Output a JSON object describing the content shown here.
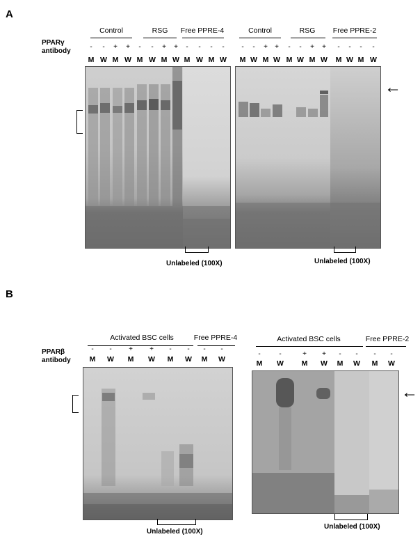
{
  "panelA": {
    "letter": "A",
    "side_label_line1": "PPARγ",
    "side_label_line2": "antibody",
    "left_gel": {
      "groups": [
        "Control",
        "RSG",
        "Free PPRE-4"
      ],
      "signs": [
        "-",
        "-",
        "+",
        "+",
        "-",
        "-",
        "+",
        "+",
        "-",
        "-",
        "-",
        "-"
      ],
      "lanes": [
        "M",
        "W",
        "M",
        "W",
        "M",
        "W",
        "M",
        "W",
        "M",
        "W",
        "M",
        "W"
      ],
      "unlabeled": "Unlabeled  (100X)"
    },
    "right_gel": {
      "groups": [
        "Control",
        "RSG",
        "Free PPRE-2"
      ],
      "signs": [
        "-",
        "-",
        "+",
        "+",
        "-",
        "-",
        "+",
        "+",
        "-",
        "-",
        "-",
        "-"
      ],
      "lanes": [
        "M",
        "W",
        "M",
        "W",
        "M",
        "W",
        "M",
        "W",
        "M",
        "W",
        "M",
        "W"
      ],
      "unlabeled": "Unlabeled  (100X)"
    },
    "arrow_glyph": "←"
  },
  "panelB": {
    "letter": "B",
    "side_label_line1": "PPARβ",
    "side_label_line2": "antibody",
    "left_gel": {
      "groups": [
        "Activated BSC cells",
        "Free PPRE-4"
      ],
      "signs": [
        "-",
        "-",
        "+",
        "+",
        "-",
        "-",
        "-",
        "-"
      ],
      "lanes": [
        "M",
        "W",
        "M",
        "W",
        "M",
        "W",
        "M",
        "W"
      ],
      "unlabeled": "Unlabeled  (100X)"
    },
    "right_gel": {
      "groups": [
        "Activated BSC cells",
        "Free PPRE-2"
      ],
      "signs": [
        "-",
        "-",
        "+",
        "+",
        "-",
        "-",
        "-",
        "-"
      ],
      "lanes": [
        "M",
        "W",
        "M",
        "W",
        "M",
        "W",
        "M",
        "W"
      ],
      "unlabeled": "Unlabeled  (100X)"
    },
    "arrow_glyph": "←"
  },
  "colors": {
    "gel_light": "#d4d4d4",
    "gel_dark": "#767676",
    "band": "#4a4a4a"
  }
}
